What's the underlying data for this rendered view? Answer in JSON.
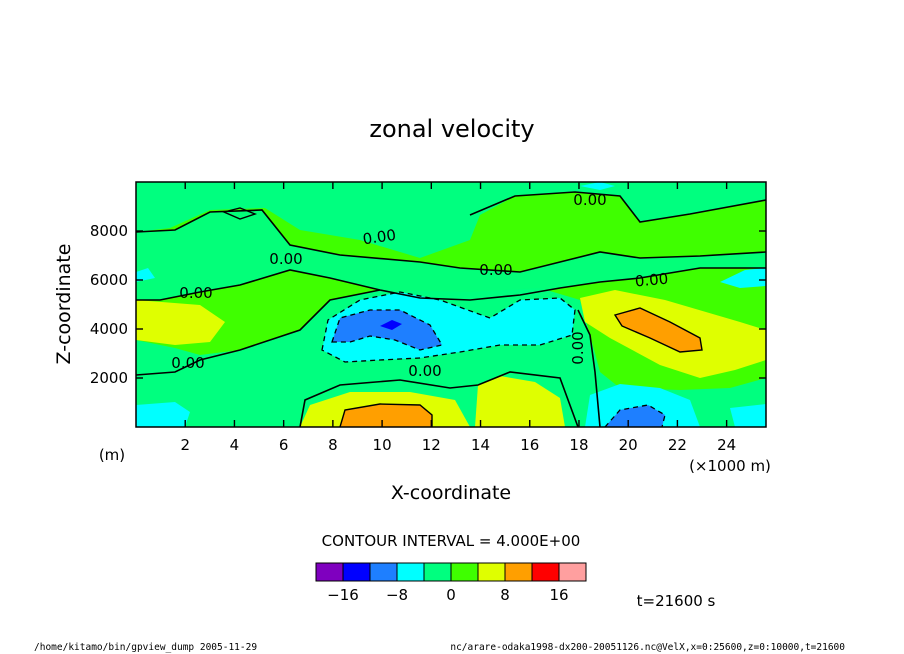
{
  "chart_data": {
    "type": "contour",
    "title": "zonal velocity",
    "xlabel": "X-coordinate",
    "ylabel": "Z-coordinate",
    "x_unit_label": "(×1000 m)",
    "y_unit_label": "(m)",
    "xlim": [
      0,
      25.6
    ],
    "ylim": [
      0,
      10000
    ],
    "xticks": [
      2,
      4,
      6,
      8,
      10,
      12,
      14,
      16,
      18,
      20,
      22,
      24
    ],
    "xtick_labels": [
      "2",
      "4",
      "6",
      "8",
      "10",
      "12",
      "14",
      "16",
      "18",
      "20",
      "22",
      "24"
    ],
    "yticks": [
      2000,
      4000,
      6000,
      8000
    ],
    "ytick_labels": [
      "2000",
      "4000",
      "6000",
      "8000"
    ],
    "contour_interval_text": "CONTOUR INTERVAL = 4.000E+00",
    "contour_interval": 4.0,
    "contour_labels": [
      "0.00",
      "0.00",
      "0.00",
      "0.00",
      "0.00",
      "0.00",
      "0.00",
      "0.00",
      "0.00"
    ],
    "colorbar": {
      "levels": [
        -20,
        -16,
        -12,
        -8,
        -4,
        0,
        4,
        8,
        12,
        16,
        20
      ],
      "colors": [
        "#7f00bf",
        "#0000ff",
        "#1e7fff",
        "#00ffff",
        "#00ff7f",
        "#3fff00",
        "#dfff00",
        "#ff9f00",
        "#ff0000",
        "#ff9f9f"
      ],
      "tick_values": [
        -16,
        -8,
        0,
        8,
        16
      ],
      "tick_labels": [
        "−16",
        "−8",
        "0",
        "8",
        "16"
      ]
    },
    "time_text": "t=21600 s",
    "features": [
      {
        "sign": "negative",
        "peak": -14,
        "x": 10.4,
        "z": 4100
      },
      {
        "sign": "negative",
        "peak": -13,
        "x": 20.8,
        "z": 500
      },
      {
        "sign": "positive",
        "peak": 10,
        "x": 10.8,
        "z": 400
      },
      {
        "sign": "positive",
        "peak": 11,
        "x": 22.0,
        "z": 3900
      },
      {
        "sign": "positive",
        "peak": 5,
        "x": 1.2,
        "z": 4200
      },
      {
        "sign": "negative",
        "peak": -6,
        "x": 16.0,
        "z": 4000
      }
    ]
  },
  "footer": {
    "left": "/home/kitamo/bin/gpview_dump  2005-11-29",
    "right": "nc/arare-odaka1998-dx200-20051126.nc@VelX,x=0:25600,z=0:10000,t=21600"
  }
}
